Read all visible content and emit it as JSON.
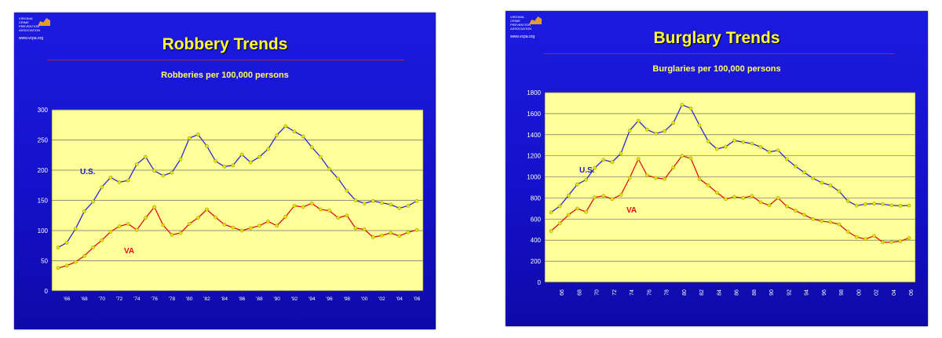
{
  "charts": [
    {
      "logo": {
        "org_lines": [
          "VIRGINIA",
          "CRIME",
          "PREVENTION",
          "ASSOCIATION"
        ],
        "url": "www.vcpa.org"
      },
      "title": "Robbery Trends",
      "subtitle": "Robberies per 100,000 persons",
      "series_labels": {
        "us": "U.S.",
        "va": "VA"
      }
    },
    {
      "logo": {
        "org_lines": [
          "VIRGINIA",
          "CRIME",
          "PREVENTION",
          "ASSOCIATION"
        ],
        "url": "www.vcpa.org"
      },
      "title": "Burglary Trends",
      "subtitle": "Burglaries per 100,000 persons",
      "series_labels": {
        "us": "U.S.",
        "va": "VA"
      }
    }
  ],
  "colors": {
    "background": "#1712d6",
    "plot": "#ffff99",
    "us_line": "#2a2ad0",
    "va_line": "#e01010",
    "marker": "#e6e600",
    "label_us": "#1a1acc",
    "label_va": "#dd1111"
  },
  "chart_data": [
    {
      "type": "line",
      "title": "Robbery Trends",
      "subtitle": "Robberies per 100,000 persons",
      "x": [
        1965,
        1966,
        1967,
        1968,
        1969,
        1970,
        1971,
        1972,
        1973,
        1974,
        1975,
        1976,
        1977,
        1978,
        1979,
        1980,
        1981,
        1982,
        1983,
        1984,
        1985,
        1986,
        1987,
        1988,
        1989,
        1990,
        1991,
        1992,
        1993,
        1994,
        1995,
        1996,
        1997,
        1998,
        1999,
        2000,
        2001,
        2002,
        2003,
        2004,
        2005,
        2006
      ],
      "xtick_labels": [
        "'66",
        "'68",
        "'70",
        "'72",
        "'74",
        "'76",
        "'78",
        "'80",
        "'82",
        "'84",
        "'86",
        "'88",
        "'90",
        "'92",
        "'94",
        "'96",
        "'98",
        "'00",
        "'02",
        "'04",
        "'06"
      ],
      "xtick_years": [
        1966,
        1968,
        1970,
        1972,
        1974,
        1976,
        1978,
        1980,
        1982,
        1984,
        1986,
        1988,
        1990,
        1992,
        1994,
        1996,
        1998,
        2000,
        2002,
        2004,
        2006
      ],
      "ylim": [
        0,
        300
      ],
      "yticks": [
        0,
        50,
        100,
        150,
        200,
        250,
        300
      ],
      "grid": true,
      "series": [
        {
          "name": "U.S.",
          "values": [
            72,
            80,
            103,
            132,
            148,
            172,
            188,
            180,
            183,
            210,
            222,
            199,
            191,
            196,
            218,
            253,
            259,
            240,
            215,
            206,
            208,
            226,
            213,
            222,
            235,
            258,
            273,
            264,
            256,
            238,
            222,
            202,
            186,
            166,
            150,
            145,
            149,
            146,
            143,
            137,
            141,
            149
          ]
        },
        {
          "name": "VA",
          "values": [
            38,
            42,
            48,
            58,
            72,
            84,
            98,
            107,
            111,
            101,
            121,
            139,
            109,
            93,
            96,
            111,
            121,
            135,
            122,
            110,
            105,
            100,
            104,
            108,
            115,
            108,
            123,
            141,
            139,
            145,
            135,
            133,
            121,
            125,
            104,
            102,
            89,
            92,
            96,
            91,
            97,
            101
          ]
        }
      ]
    },
    {
      "type": "line",
      "title": "Burglary Trends",
      "subtitle": "Burglaries per 100,000 persons",
      "x": [
        1965,
        1966,
        1967,
        1968,
        1969,
        1970,
        1971,
        1972,
        1973,
        1974,
        1975,
        1976,
        1977,
        1978,
        1979,
        1980,
        1981,
        1982,
        1983,
        1984,
        1985,
        1986,
        1987,
        1988,
        1989,
        1990,
        1991,
        1992,
        1993,
        1994,
        1995,
        1996,
        1997,
        1998,
        1999,
        2000,
        2001,
        2002,
        2003,
        2004,
        2005,
        2006
      ],
      "xtick_labels": [
        "66",
        "68",
        "70",
        "72",
        "74",
        "76",
        "78",
        "80",
        "82",
        "84",
        "86",
        "88",
        "90",
        "92",
        "94",
        "96",
        "98",
        "00",
        "02",
        "04",
        "06"
      ],
      "xtick_years": [
        1966,
        1968,
        1970,
        1972,
        1974,
        1976,
        1978,
        1980,
        1982,
        1984,
        1986,
        1988,
        1990,
        1992,
        1994,
        1996,
        1998,
        2000,
        2002,
        2004,
        2006
      ],
      "ylim": [
        0,
        1800
      ],
      "yticks": [
        0,
        200,
        400,
        600,
        800,
        1000,
        1200,
        1400,
        1600,
        1800
      ],
      "grid": true,
      "series": [
        {
          "name": "U.S.",
          "values": [
            663,
            722,
            824,
            930,
            972,
            1085,
            1162,
            1141,
            1223,
            1440,
            1532,
            1448,
            1412,
            1434,
            1511,
            1684,
            1650,
            1489,
            1338,
            1264,
            1287,
            1345,
            1330,
            1316,
            1284,
            1236,
            1252,
            1168,
            1099,
            1042,
            987,
            945,
            919,
            863,
            770,
            728,
            741,
            747,
            741,
            730,
            726,
            729
          ]
        },
        {
          "name": "VA",
          "values": [
            487,
            560,
            640,
            700,
            668,
            806,
            820,
            790,
            830,
            990,
            1170,
            1015,
            990,
            980,
            1090,
            1200,
            1176,
            980,
            920,
            850,
            790,
            810,
            800,
            820,
            760,
            730,
            800,
            720,
            680,
            640,
            600,
            580,
            570,
            550,
            480,
            430,
            410,
            440,
            380,
            380,
            390,
            420
          ]
        }
      ]
    }
  ]
}
